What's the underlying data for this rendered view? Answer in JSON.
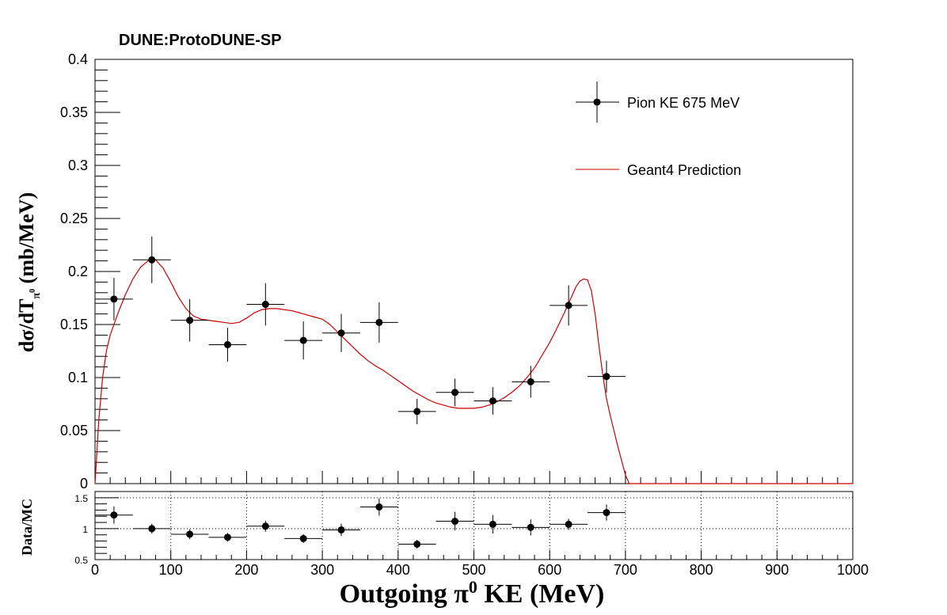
{
  "chart_data": [
    {
      "type": "scatter",
      "title": "DUNE:ProtoDUNE-SP",
      "xlabel": "Outgoing  π⁰ KE (MeV)",
      "ylabel": "dσ/dT_π⁰ (mb/MeV)",
      "xlim": [
        0,
        1000
      ],
      "ylim": [
        0,
        0.4
      ],
      "x_ticks": [
        "0",
        "100",
        "200",
        "300",
        "400",
        "500",
        "600",
        "700",
        "800",
        "900",
        "1000"
      ],
      "y_ticks": [
        "0",
        "0.05",
        "0.1",
        "0.15",
        "0.2",
        "0.25",
        "0.3",
        "0.35",
        "0.4"
      ],
      "legend_position": "top-right",
      "series": [
        {
          "name": "Pion KE 675 MeV",
          "kind": "data-points",
          "color": "#000000",
          "x": [
            25,
            75,
            125,
            175,
            225,
            275,
            325,
            375,
            425,
            475,
            525,
            575,
            625,
            675
          ],
          "xerr": [
            25,
            25,
            25,
            25,
            25,
            25,
            25,
            25,
            25,
            25,
            25,
            25,
            25,
            25
          ],
          "y": [
            0.174,
            0.211,
            0.154,
            0.131,
            0.169,
            0.135,
            0.142,
            0.152,
            0.068,
            0.086,
            0.078,
            0.096,
            0.168,
            0.101
          ],
          "yerr": [
            0.02,
            0.022,
            0.02,
            0.016,
            0.02,
            0.018,
            0.018,
            0.019,
            0.012,
            0.013,
            0.013,
            0.015,
            0.019,
            0.015
          ]
        },
        {
          "name": "Geant4 Prediction",
          "kind": "curve",
          "color": "#cc0000",
          "x": [
            0,
            5,
            10,
            15,
            20,
            30,
            40,
            50,
            60,
            70,
            75,
            80,
            90,
            100,
            110,
            120,
            130,
            140,
            150,
            160,
            170,
            180,
            190,
            200,
            210,
            220,
            230,
            240,
            250,
            260,
            270,
            280,
            290,
            300,
            310,
            320,
            330,
            340,
            350,
            360,
            370,
            380,
            390,
            400,
            410,
            420,
            430,
            440,
            450,
            460,
            470,
            480,
            490,
            500,
            510,
            520,
            530,
            540,
            550,
            560,
            570,
            580,
            590,
            600,
            610,
            620,
            630,
            635,
            640,
            645,
            650,
            655,
            660,
            665,
            670,
            675,
            680,
            690,
            700,
            705,
            710,
            800,
            900,
            1000
          ],
          "y": [
            0.0,
            0.06,
            0.1,
            0.125,
            0.14,
            0.16,
            0.178,
            0.193,
            0.204,
            0.21,
            0.212,
            0.211,
            0.203,
            0.19,
            0.176,
            0.165,
            0.158,
            0.155,
            0.154,
            0.153,
            0.152,
            0.151,
            0.152,
            0.156,
            0.161,
            0.164,
            0.165,
            0.165,
            0.164,
            0.163,
            0.161,
            0.159,
            0.157,
            0.155,
            0.15,
            0.143,
            0.136,
            0.129,
            0.122,
            0.116,
            0.111,
            0.107,
            0.102,
            0.097,
            0.092,
            0.087,
            0.083,
            0.079,
            0.076,
            0.074,
            0.072,
            0.071,
            0.071,
            0.071,
            0.072,
            0.074,
            0.077,
            0.081,
            0.086,
            0.092,
            0.1,
            0.109,
            0.121,
            0.133,
            0.147,
            0.162,
            0.178,
            0.186,
            0.191,
            0.193,
            0.192,
            0.182,
            0.16,
            0.13,
            0.103,
            0.08,
            0.064,
            0.035,
            0.008,
            0.0,
            0.0,
            0.0,
            0.0,
            0.0
          ]
        }
      ]
    },
    {
      "type": "scatter",
      "title": "",
      "xlabel": "Outgoing  π⁰ KE (MeV)",
      "ylabel": "Data/MC",
      "xlim": [
        0,
        1000
      ],
      "ylim": [
        0.5,
        1.6
      ],
      "x_ticks": [
        "0",
        "100",
        "200",
        "300",
        "400",
        "500",
        "600",
        "700",
        "800",
        "900",
        "1000"
      ],
      "y_ticks": [
        "0.5",
        "1",
        "1.5"
      ],
      "grid": true,
      "series": [
        {
          "name": "",
          "kind": "data-points",
          "color": "#000000",
          "x": [
            25,
            75,
            125,
            175,
            225,
            275,
            325,
            375,
            425,
            475,
            525,
            575,
            625,
            675
          ],
          "xerr": [
            25,
            25,
            25,
            25,
            25,
            25,
            25,
            25,
            25,
            25,
            25,
            25,
            25,
            25
          ],
          "y": [
            1.22,
            1.0,
            0.91,
            0.86,
            1.04,
            0.84,
            0.98,
            1.35,
            0.75,
            1.12,
            1.07,
            1.02,
            1.07,
            1.26
          ],
          "yerr": [
            0.14,
            0.08,
            0.08,
            0.07,
            0.09,
            0.07,
            0.1,
            0.14,
            0.07,
            0.15,
            0.15,
            0.13,
            0.09,
            0.13
          ]
        }
      ]
    }
  ]
}
